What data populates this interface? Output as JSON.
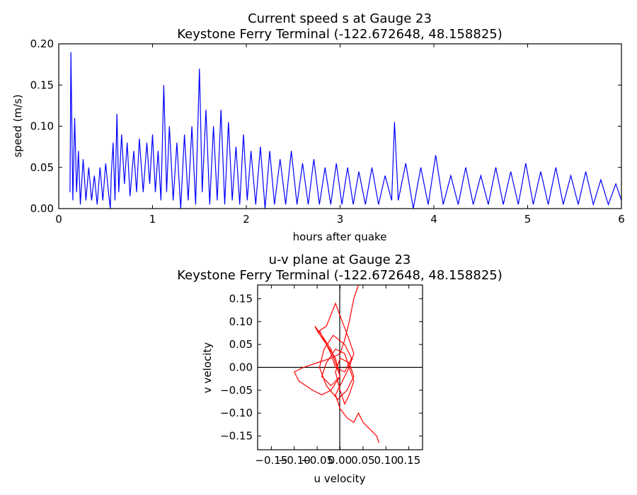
{
  "chart_data": [
    {
      "type": "line",
      "title": "Current speed s at Gauge 23",
      "subtitle": "Keystone Ferry Terminal  (-122.672648, 48.158825)",
      "xlabel": "hours after quake",
      "ylabel": "speed (m/s)",
      "xlim": [
        0,
        6
      ],
      "ylim": [
        0,
        0.2
      ],
      "xticks": [
        "0",
        "1",
        "2",
        "3",
        "4",
        "5",
        "6"
      ],
      "yticks": [
        "0.00",
        "0.05",
        "0.10",
        "0.15",
        "0.20"
      ],
      "color": "#0000ff",
      "grid": false,
      "x": [
        0.12,
        0.13,
        0.15,
        0.17,
        0.19,
        0.21,
        0.23,
        0.26,
        0.29,
        0.32,
        0.35,
        0.38,
        0.41,
        0.44,
        0.47,
        0.5,
        0.53,
        0.55,
        0.56,
        0.58,
        0.6,
        0.62,
        0.64,
        0.67,
        0.7,
        0.73,
        0.76,
        0.8,
        0.83,
        0.86,
        0.9,
        0.94,
        0.97,
        1.0,
        1.03,
        1.06,
        1.09,
        1.12,
        1.15,
        1.18,
        1.22,
        1.26,
        1.3,
        1.34,
        1.38,
        1.42,
        1.46,
        1.5,
        1.53,
        1.57,
        1.61,
        1.65,
        1.69,
        1.73,
        1.77,
        1.81,
        1.85,
        1.89,
        1.93,
        1.97,
        2.01,
        2.05,
        2.1,
        2.15,
        2.2,
        2.25,
        2.3,
        2.36,
        2.42,
        2.48,
        2.54,
        2.6,
        2.66,
        2.72,
        2.78,
        2.84,
        2.9,
        2.96,
        3.02,
        3.08,
        3.14,
        3.2,
        3.27,
        3.34,
        3.41,
        3.48,
        3.55,
        3.58,
        3.62,
        3.7,
        3.78,
        3.86,
        3.94,
        4.02,
        4.1,
        4.18,
        4.26,
        4.34,
        4.42,
        4.5,
        4.58,
        4.66,
        4.74,
        4.82,
        4.9,
        4.98,
        5.06,
        5.14,
        5.22,
        5.3,
        5.38,
        5.46,
        5.54,
        5.62,
        5.7,
        5.78,
        5.86,
        5.94,
        6.0
      ],
      "y": [
        0.02,
        0.19,
        0.01,
        0.11,
        0.02,
        0.07,
        0.005,
        0.06,
        0.01,
        0.05,
        0.01,
        0.04,
        0.005,
        0.05,
        0.01,
        0.055,
        0.02,
        0.0,
        0.04,
        0.08,
        0.01,
        0.115,
        0.02,
        0.09,
        0.03,
        0.08,
        0.015,
        0.07,
        0.02,
        0.085,
        0.02,
        0.08,
        0.03,
        0.09,
        0.02,
        0.07,
        0.01,
        0.15,
        0.02,
        0.1,
        0.01,
        0.08,
        0.0,
        0.09,
        0.01,
        0.1,
        0.005,
        0.17,
        0.02,
        0.12,
        0.005,
        0.1,
        0.01,
        0.12,
        0.005,
        0.105,
        0.01,
        0.075,
        0.005,
        0.09,
        0.01,
        0.07,
        0.005,
        0.075,
        0.0,
        0.07,
        0.005,
        0.06,
        0.005,
        0.07,
        0.005,
        0.055,
        0.005,
        0.06,
        0.005,
        0.05,
        0.005,
        0.055,
        0.005,
        0.05,
        0.005,
        0.045,
        0.005,
        0.05,
        0.005,
        0.04,
        0.01,
        0.105,
        0.01,
        0.055,
        0.0,
        0.05,
        0.005,
        0.065,
        0.005,
        0.04,
        0.005,
        0.05,
        0.005,
        0.04,
        0.005,
        0.05,
        0.005,
        0.045,
        0.005,
        0.055,
        0.005,
        0.045,
        0.005,
        0.05,
        0.005,
        0.04,
        0.005,
        0.045,
        0.005,
        0.035,
        0.005,
        0.03,
        0.01
      ]
    },
    {
      "type": "line",
      "title": "u-v plane at Gauge 23",
      "subtitle": "Keystone Ferry Terminal  (-122.672648, 48.158825)",
      "xlabel": "u velocity",
      "ylabel": "v velocity",
      "xlim": [
        -0.18,
        0.18
      ],
      "ylim": [
        -0.18,
        0.18
      ],
      "xticks": [
        "−0.15",
        "−0.10",
        "−0.05",
        "0.00",
        "0.05",
        "0.10",
        "0.15"
      ],
      "yticks": [
        "−0.15",
        "−0.10",
        "−0.05",
        "0.00",
        "0.05",
        "0.10",
        "0.15"
      ],
      "color": "#ff0000",
      "grid": false,
      "u": [
        0.04,
        0.03,
        0.02,
        0.01,
        0.0,
        -0.02,
        -0.05,
        -0.08,
        -0.1,
        -0.09,
        -0.06,
        -0.04,
        -0.02,
        0.0,
        -0.01,
        -0.03,
        -0.05,
        -0.055,
        -0.04,
        -0.02,
        -0.01,
        0.0,
        -0.02,
        -0.04,
        -0.03,
        -0.01,
        0.01,
        0.02,
        0.03,
        0.02,
        0.01,
        0.0,
        -0.01,
        0.0,
        0.02,
        0.03,
        0.015,
        -0.005,
        -0.03,
        -0.045,
        -0.035,
        -0.015,
        0.01,
        0.025,
        0.01,
        -0.01,
        -0.02,
        -0.035,
        -0.045,
        -0.03,
        -0.01,
        0.005,
        0.02,
        0.03,
        0.02,
        0.005,
        -0.01,
        0.0,
        0.015,
        0.03,
        0.04,
        0.05,
        0.06,
        0.07,
        0.08,
        0.085
      ],
      "v": [
        0.18,
        0.15,
        0.1,
        0.06,
        0.03,
        0.02,
        0.01,
        0.0,
        -0.01,
        -0.03,
        -0.05,
        -0.06,
        -0.05,
        -0.02,
        0.02,
        0.05,
        0.08,
        0.09,
        0.07,
        0.04,
        0.01,
        -0.02,
        -0.04,
        -0.02,
        0.01,
        0.04,
        0.03,
        0.0,
        -0.03,
        -0.06,
        -0.08,
        -0.05,
        -0.01,
        0.02,
        0.01,
        -0.02,
        -0.05,
        -0.07,
        -0.04,
        0.0,
        0.04,
        0.07,
        0.05,
        0.02,
        -0.01,
        0.0,
        0.03,
        0.06,
        0.08,
        0.09,
        0.14,
        0.1,
        0.06,
        0.03,
        0.0,
        -0.03,
        -0.06,
        -0.09,
        -0.11,
        -0.12,
        -0.1,
        -0.12,
        -0.13,
        -0.14,
        -0.15,
        -0.165
      ]
    }
  ]
}
